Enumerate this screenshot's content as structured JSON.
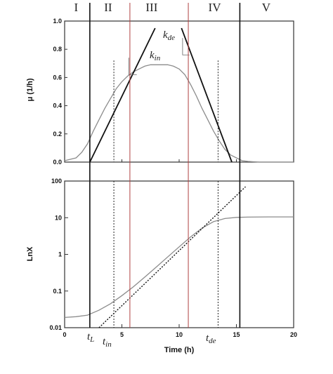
{
  "chart_data": [
    {
      "type": "line",
      "panel": "top",
      "ylabel": "μ (1/h)",
      "xlim": [
        0,
        20
      ],
      "ylim": [
        0,
        1.0
      ],
      "y_ticks": [
        "0.0",
        "0.2",
        "0.4",
        "0.6",
        "0.8",
        "1.0"
      ],
      "y_tick_values": [
        0,
        0.2,
        0.4,
        0.6,
        0.8,
        1.0
      ],
      "phase_labels": [
        "I",
        "II",
        "III",
        "IV",
        "V"
      ],
      "phase_boundaries_x": [
        2.2,
        5.7,
        10.8,
        15.3
      ],
      "annotations": [
        {
          "text": "k",
          "sub": "de"
        },
        {
          "text": "k",
          "sub": "in"
        }
      ],
      "series": [
        {
          "style": "curve",
          "x": [
            0,
            1,
            1.5,
            2,
            2.5,
            3,
            3.5,
            4,
            4.5,
            5,
            5.5,
            6,
            6.5,
            7,
            7.5,
            8,
            8.5,
            9,
            9.5,
            10,
            10.5,
            11,
            11.5,
            12,
            12.5,
            13,
            13.5,
            14,
            14.5,
            15,
            15.5,
            16,
            17,
            18,
            20
          ],
          "y": [
            0.01,
            0.03,
            0.07,
            0.13,
            0.22,
            0.3,
            0.38,
            0.45,
            0.52,
            0.57,
            0.61,
            0.64,
            0.66,
            0.68,
            0.69,
            0.69,
            0.69,
            0.69,
            0.68,
            0.66,
            0.62,
            0.55,
            0.47,
            0.38,
            0.3,
            0.22,
            0.15,
            0.09,
            0.05,
            0.03,
            0.01,
            0.005,
            0,
            0,
            0
          ]
        },
        {
          "style": "rising-tangent",
          "x": [
            2.2,
            7.9
          ],
          "y": [
            0.0,
            0.95
          ]
        },
        {
          "style": "falling-tangent",
          "x": [
            10.2,
            14.6
          ],
          "y": [
            0.95,
            0.0
          ]
        }
      ],
      "guide_lines_dotted_x": [
        4.3,
        13.4
      ]
    },
    {
      "type": "line",
      "panel": "bottom",
      "xlabel": "Time (h)",
      "ylabel": "LnX",
      "yscale": "log",
      "xlim": [
        0,
        20
      ],
      "ylim": [
        0.01,
        100
      ],
      "x_ticks": [
        "0",
        "5",
        "10",
        "15",
        "20"
      ],
      "x_tick_values": [
        0,
        5,
        10,
        15,
        20
      ],
      "y_ticks": [
        "0.01",
        "0.1",
        "1",
        "10",
        "100"
      ],
      "y_tick_values": [
        0.01,
        0.1,
        1,
        10,
        100
      ],
      "time_markers": [
        {
          "text": "t",
          "sub": "L"
        },
        {
          "text": "t",
          "sub": "in"
        },
        {
          "text": "t",
          "sub": "de"
        }
      ],
      "series": [
        {
          "style": "curve",
          "x": [
            0,
            1,
            2,
            3,
            4,
            5,
            6,
            7,
            8,
            9,
            10,
            11,
            12,
            13,
            14,
            15,
            16,
            18,
            20
          ],
          "y": [
            0.019,
            0.02,
            0.022,
            0.03,
            0.045,
            0.075,
            0.13,
            0.24,
            0.45,
            0.85,
            1.6,
            3.0,
            5.2,
            7.8,
            9.5,
            10.2,
            10.4,
            10.5,
            10.5
          ]
        },
        {
          "style": "dotted-fit",
          "x": [
            3.0,
            15.8
          ],
          "y": [
            0.01,
            70
          ]
        }
      ]
    }
  ]
}
